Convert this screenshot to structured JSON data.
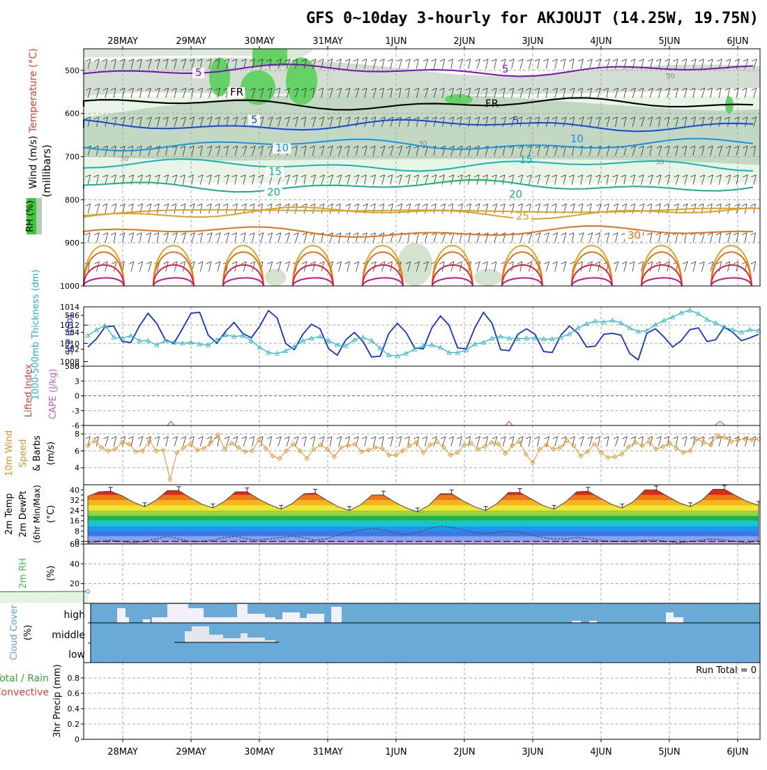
{
  "title": "GFS 0~10day 3-hourly for AKJOUJT (14.25W, 19.75N)",
  "days": [
    "28MAY",
    "29MAY",
    "30MAY",
    "31MAY",
    "1JUN",
    "2JUN",
    "3JUN",
    "4JUN",
    "5JUN",
    "6JUN"
  ],
  "colors": {
    "purple": "#7a0fb4",
    "black": "#000000",
    "blue": "#1446d8",
    "sky": "#1492e6",
    "teal": "#12b4b4",
    "green": "#14b478",
    "gold": "#e0a024",
    "orange": "#e07414",
    "red": "#e01e3c",
    "magenta": "#c8147c",
    "rh_green": "#3cc83c",
    "slp": "#1432c8",
    "thick": "#1eb4c8",
    "wind10": "#e89224",
    "cloud": "#6aaad6"
  },
  "chart_data": [
    {
      "type": "heatmap",
      "name": "upper-air",
      "ylabel": "(millibars)",
      "ylim": [
        1000,
        450
      ],
      "yticks": [
        500,
        600,
        700,
        800,
        900,
        1000
      ],
      "legend_labels": [
        "Wind (m/s)",
        "Temperature (°C)",
        "RH (%)"
      ],
      "isotherms": [
        {
          "label": "5",
          "level": 500,
          "color": "purple"
        },
        {
          "label": "FR",
          "level": 578,
          "color": "black"
        },
        {
          "label": "5",
          "level": 627,
          "color": "blue"
        },
        {
          "label": "10",
          "level": 672,
          "color": "sky"
        },
        {
          "label": "15",
          "level": 720,
          "color": "teal"
        },
        {
          "label": "20",
          "level": 768,
          "color": "green"
        },
        {
          "label": "25",
          "level": 830,
          "color": "gold"
        },
        {
          "label": "30",
          "level": 875,
          "color": "orange"
        }
      ],
      "rh_labels": [
        "30",
        "50",
        "30",
        "30"
      ]
    },
    {
      "type": "line",
      "name": "slp-thickness",
      "ylabel_left": "1000-500mb Thickness (dm)",
      "ylabel_right": "SLP (mb)",
      "yticks_left": [
        580,
        582,
        584,
        586
      ],
      "yticks_right": [
        1008,
        1010,
        1012,
        1014
      ],
      "ylim_right": [
        1007.5,
        1014
      ],
      "ylim_left": [
        580,
        587
      ],
      "series": [
        {
          "name": "SLP",
          "axis": "right",
          "values": [
            1009.6,
            1010.5,
            1011.8,
            1011.9,
            1010.2,
            1010.1,
            1011.9,
            1013.3,
            1012.2,
            1010.4,
            1010.0,
            1011.6,
            1013.3,
            1013.4,
            1010.9,
            1010.0,
            1011.3,
            1012.3,
            1011.1,
            1010.6,
            1011.9,
            1013.6,
            1012.8,
            1010.0,
            1009.3,
            1011.0,
            1012.1,
            1011.6,
            1009.4,
            1008.7,
            1010.4,
            1011.2,
            1010.2,
            1008.5,
            1008.6,
            1011.1,
            1012.2,
            1011.2,
            1009.5,
            1009.4,
            1011.7,
            1013.0,
            1012.0,
            1009.5,
            1009.4,
            1011.7,
            1013.4,
            1012.2,
            1009.3,
            1009.2,
            1011.0,
            1011.6,
            1011.0,
            1009.1,
            1009.0,
            1010.9,
            1011.9,
            1011.1,
            1009.6,
            1009.7,
            1011.0,
            1011.1,
            1010.9,
            1008.9,
            1008.2,
            1011.1,
            1011.6,
            1010.7,
            1009.6,
            1010.3,
            1011.5,
            1011.7,
            1010.2,
            1010.4,
            1011.8,
            1011.2,
            1010.3,
            1010.6,
            1011.0
          ]
        },
        {
          "name": "Thickness",
          "axis": "left",
          "values": [
            583.6,
            584.3,
            584.8,
            583.4,
            583.3,
            583.6,
            583.0,
            583.0,
            582.5,
            583.0,
            582.8,
            582.7,
            582.8,
            582.6,
            582.5,
            583.1,
            583.7,
            583.5,
            583.6,
            583.0,
            582.2,
            581.6,
            581.5,
            581.8,
            582.3,
            583.0,
            583.3,
            583.5,
            583.0,
            582.5,
            582.4,
            583.1,
            583.4,
            583.0,
            582.1,
            581.3,
            581.2,
            581.5,
            582.0,
            582.4,
            582.5,
            582.2,
            581.6,
            581.6,
            581.9,
            582.6,
            582.8,
            583.3,
            583.5,
            583.3,
            583.2,
            583.3,
            583.3,
            583.2,
            583.2,
            583.4,
            583.8,
            584.5,
            585.0,
            585.3,
            585.2,
            585.4,
            585.1,
            584.5,
            584.1,
            584.2,
            584.9,
            585.4,
            585.8,
            586.3,
            586.6,
            586.2,
            585.5,
            585.1,
            584.6,
            584.3,
            584.0,
            584.3,
            584.2
          ]
        }
      ]
    },
    {
      "type": "line",
      "name": "lifted-index-cape",
      "ylabel_left": "Lifted Index",
      "ylabel_right": "CAPE (J/kg)",
      "yticks": [
        -6,
        -3,
        0,
        3,
        6
      ],
      "ytick_labels": [
        "6",
        "3",
        "0",
        "-3",
        "-6"
      ],
      "ylim": [
        -6,
        6
      ]
    },
    {
      "type": "line",
      "name": "wind10m",
      "ylabel": "10m Wind Speed & Barbs (m/s)",
      "yticks": [
        4,
        6,
        8
      ],
      "ylim": [
        2,
        9
      ],
      "series": [
        {
          "name": "Wind speed",
          "values": [
            6.6,
            7.2,
            6.4,
            6.0,
            6.2,
            7.0,
            6.8,
            5.9,
            6.0,
            7.2,
            6.0,
            6.1,
            2.6,
            5.8,
            6.4,
            6.8,
            6.1,
            6.3,
            7.0,
            7.9,
            6.2,
            6.9,
            6.4,
            5.9,
            6.0,
            7.3,
            6.3,
            5.4,
            5.1,
            6.0,
            6.8,
            6.0,
            5.1,
            6.2,
            6.7,
            6.2,
            5.3,
            6.4,
            6.6,
            6.8,
            5.9,
            6.1,
            6.4,
            6.3,
            5.5,
            5.5,
            6.0,
            6.6,
            7.0,
            5.8,
            6.7,
            7.1,
            6.4,
            5.5,
            5.8,
            6.7,
            6.9,
            6.2,
            6.5,
            7.0,
            6.8,
            5.7,
            6.6,
            7.1,
            5.6,
            4.6,
            6.2,
            6.7,
            6.2,
            6.4,
            7.2,
            6.6,
            5.4,
            5.9,
            6.8,
            5.8,
            5.2,
            5.3,
            5.6,
            6.5,
            7.0,
            6.6,
            7.1,
            6.2,
            6.5,
            6.9,
            6.3,
            5.8,
            6.0,
            7.4,
            7.0,
            6.7,
            7.8,
            7.6,
            7.1,
            7.3,
            7.4,
            7.3,
            7.4
          ]
        }
      ]
    },
    {
      "type": "area",
      "name": "temp2m",
      "ylabel": "2m Temp / 2m DewPt (6hr Min/Max) (°C)",
      "yticks": [
        0,
        8,
        16,
        24,
        32,
        40
      ],
      "yticks_minor": [
        4,
        12,
        20,
        28,
        36
      ],
      "ylim": [
        -2,
        44
      ],
      "series": [
        {
          "name": "Temp",
          "values": [
            35,
            38.5,
            39,
            35.5,
            30.5,
            27,
            32,
            39.5,
            39.5,
            34,
            29,
            26,
            31,
            38.5,
            38.5,
            33,
            28.5,
            25,
            29.5,
            37,
            37.5,
            32,
            27,
            24,
            28.5,
            36,
            36,
            30.5,
            26,
            23,
            28,
            37,
            37,
            31.5,
            27,
            24,
            29.5,
            38,
            38,
            33,
            28,
            25,
            30.5,
            38.5,
            39,
            34,
            29,
            26,
            31,
            40,
            40,
            35,
            30,
            27,
            32,
            40.5,
            40.5,
            35.5,
            31,
            28
          ]
        },
        {
          "name": "DewPt",
          "values": [
            -1,
            0,
            1,
            0,
            -1,
            0,
            2,
            4,
            2,
            0,
            0,
            1,
            3,
            4,
            2,
            1,
            2,
            3,
            4,
            3,
            1,
            2,
            5,
            7,
            9,
            10,
            9,
            7,
            5,
            7,
            10,
            12,
            11,
            9,
            7,
            6,
            7,
            8,
            7,
            5,
            3,
            2,
            2,
            3,
            2,
            1,
            0,
            0,
            0,
            1,
            1,
            0,
            -1,
            0,
            1,
            2,
            1,
            0,
            -1,
            1
          ]
        }
      ]
    },
    {
      "type": "area",
      "name": "rh2m",
      "ylabel": "2m RH (%)",
      "yticks": [
        20,
        40,
        60
      ],
      "ylim": [
        0,
        60
      ],
      "series": [
        {
          "name": "RH",
          "values": [
            12,
            9,
            11,
            14,
            16,
            19,
            24,
            20,
            15,
            10,
            9,
            11,
            14,
            17,
            19,
            21,
            19,
            14,
            11,
            14,
            19,
            22,
            22,
            17,
            11,
            10,
            13,
            22,
            36,
            41,
            32,
            20,
            13,
            11,
            14,
            24,
            41,
            49,
            39,
            24,
            16,
            11,
            13,
            27,
            47,
            57,
            50,
            30,
            17,
            11,
            15,
            31,
            40,
            42,
            31,
            18,
            12,
            12,
            16,
            18,
            18,
            26,
            18,
            11,
            10,
            12,
            15,
            17,
            17,
            15,
            12,
            10,
            11,
            15,
            19,
            26,
            19,
            12,
            10,
            12,
            14,
            17,
            19
          ]
        }
      ]
    },
    {
      "type": "bar",
      "name": "cloud-cover",
      "ylabel": "Cloud Cover (%)",
      "layers": [
        "high",
        "middle",
        "low"
      ]
    },
    {
      "type": "bar",
      "name": "precip",
      "ylabel": "3hr Precip (mm)",
      "ylabel_left": "Total / Rain",
      "ylabel_left2": "Convective",
      "yticks": [
        0,
        0.2,
        0.4,
        0.6,
        0.8
      ],
      "ylim": [
        0,
        1
      ],
      "annotation": "Run Total = 0",
      "values": []
    }
  ]
}
